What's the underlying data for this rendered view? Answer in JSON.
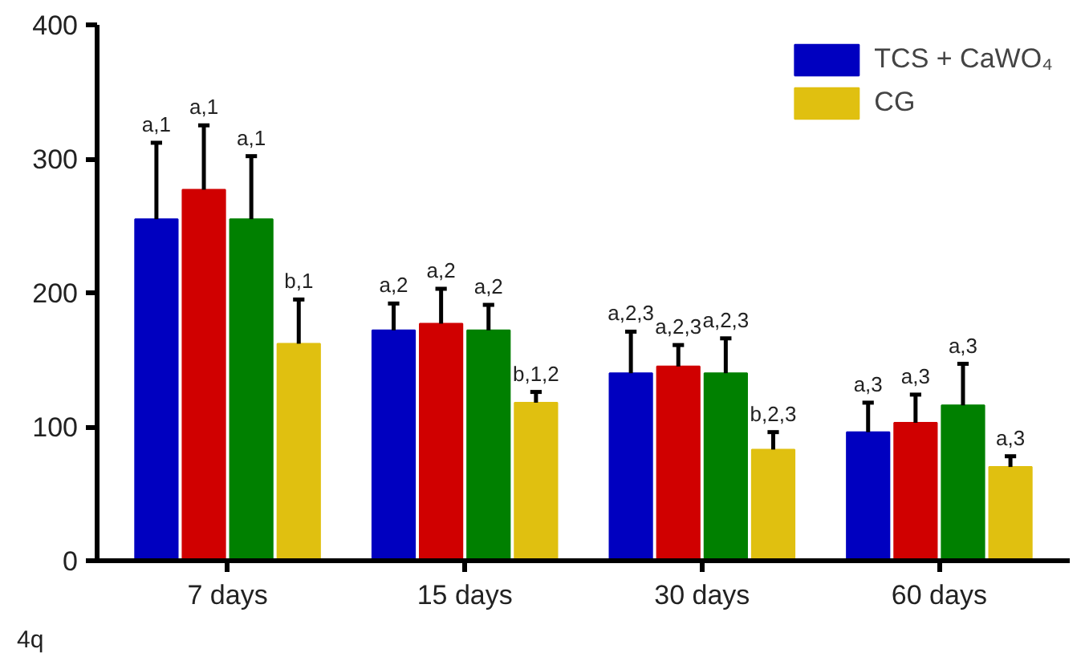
{
  "chart_data": {
    "type": "bar",
    "categories": [
      "7 days",
      "15 days",
      "30 days",
      "60 days"
    ],
    "series": [
      {
        "name": "TCS + CaWO₄",
        "color": "#0000c0",
        "values": [
          255,
          172,
          140,
          96
        ],
        "errors": [
          [
            255,
            312
          ],
          [
            172,
            192
          ],
          [
            140,
            171
          ],
          [
            96,
            118
          ]
        ]
      },
      {
        "color": "#d00000",
        "values": [
          277,
          177,
          145,
          103
        ],
        "errors": [
          [
            277,
            325
          ],
          [
            177,
            203
          ],
          [
            145,
            161
          ],
          [
            103,
            124
          ]
        ]
      },
      {
        "color": "#008000",
        "values": [
          255,
          172,
          140,
          116
        ],
        "errors": [
          [
            255,
            302
          ],
          [
            172,
            191
          ],
          [
            140,
            166
          ],
          [
            116,
            147
          ]
        ]
      },
      {
        "name": "CG",
        "color": "#e0c010",
        "values": [
          162,
          118,
          83,
          70
        ],
        "errors": [
          [
            162,
            195
          ],
          [
            118,
            126
          ],
          [
            83,
            96
          ],
          [
            70,
            78
          ]
        ]
      }
    ],
    "ylim": [
      0,
      400
    ],
    "yticks": [
      0,
      100,
      200,
      300,
      400
    ],
    "grid": false,
    "legend": "top right",
    "annotations": [
      "4q",
      "a,1",
      "a,1",
      "a,1",
      "b,1",
      "a,2",
      "a,2",
      "a,2",
      "b,1,2",
      "a,2,3",
      "a,2,3",
      "a,2,3",
      "b,2,3",
      "a,3",
      "a,3",
      "a,3",
      "a,3"
    ]
  }
}
